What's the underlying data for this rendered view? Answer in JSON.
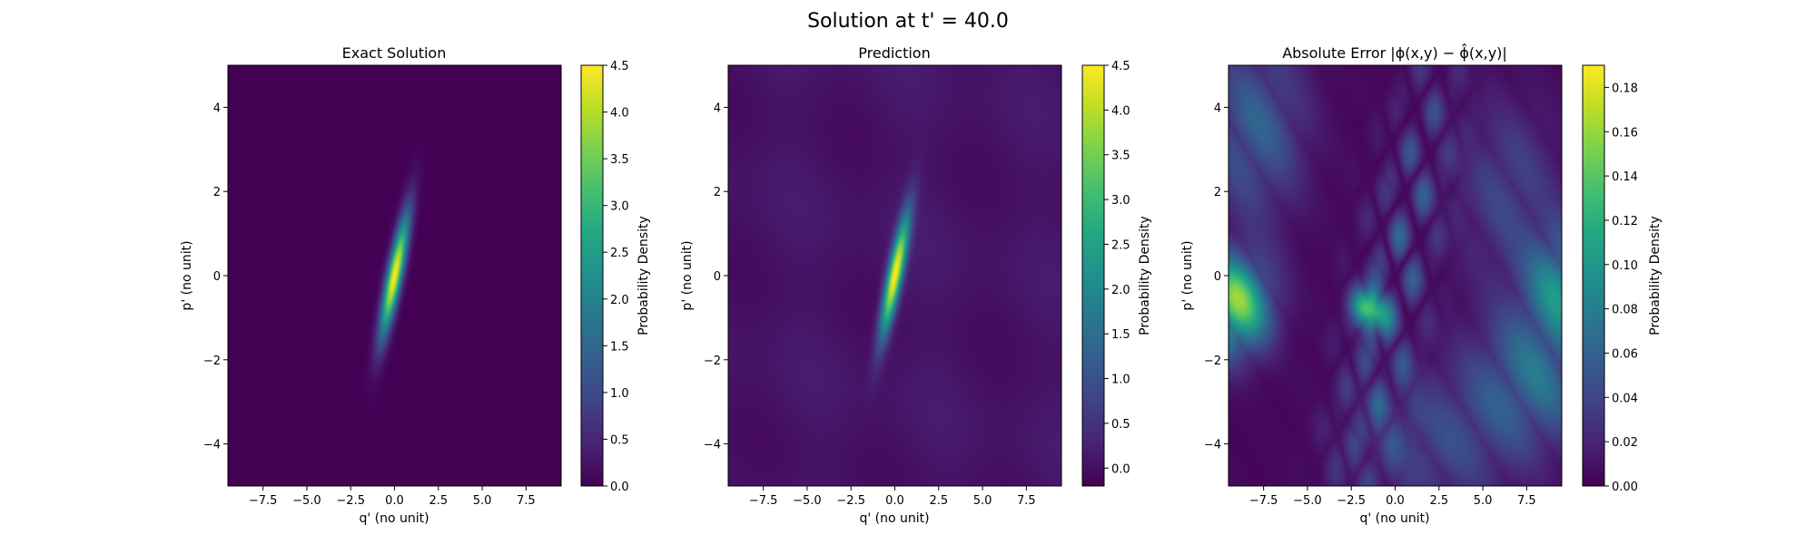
{
  "figure": {
    "suptitle": "Solution at t' = 40.0"
  },
  "colors": {
    "viridis_dark": "#440154",
    "viridis_mid": "#21918c",
    "viridis_bright": "#fde725"
  },
  "chart_data": [
    {
      "type": "heatmap",
      "title": "Exact Solution",
      "xlabel": "q' (no unit)",
      "ylabel": "p' (no unit)",
      "xlim": [
        -9.5,
        9.5
      ],
      "ylim": [
        -5,
        5
      ],
      "xticks": [
        -7.5,
        -5.0,
        -2.5,
        0.0,
        2.5,
        5.0,
        7.5
      ],
      "xtick_labels": [
        "−7.5",
        "−5.0",
        "−2.5",
        "0.0",
        "2.5",
        "5.0",
        "7.5"
      ],
      "yticks": [
        -4,
        -2,
        0,
        2,
        4
      ],
      "ytick_labels": [
        "−4",
        "−2",
        "0",
        "2",
        "4"
      ],
      "colormap": "viridis",
      "colorbar": {
        "label": "Probability Density",
        "vmin": 0.0,
        "vmax": 4.5,
        "ticks": [
          0.0,
          0.5,
          1.0,
          1.5,
          2.0,
          2.5,
          3.0,
          3.5,
          4.0,
          4.5
        ],
        "tick_labels": [
          "0.0",
          "0.5",
          "1.0",
          "1.5",
          "2.0",
          "2.5",
          "3.0",
          "3.5",
          "4.0",
          "4.5"
        ]
      },
      "field": {
        "kind": "gaussian",
        "peak": 4.5,
        "center": [
          0.0,
          0.0
        ],
        "sigma_major": 1.1,
        "sigma_minor": 0.27,
        "angle_deg": 63
      }
    },
    {
      "type": "heatmap",
      "title": "Prediction",
      "xlabel": "q' (no unit)",
      "ylabel": "p' (no unit)",
      "xlim": [
        -9.5,
        9.5
      ],
      "ylim": [
        -5,
        5
      ],
      "xticks": [
        -7.5,
        -5.0,
        -2.5,
        0.0,
        2.5,
        5.0,
        7.5
      ],
      "xtick_labels": [
        "−7.5",
        "−5.0",
        "−2.5",
        "0.0",
        "2.5",
        "5.0",
        "7.5"
      ],
      "yticks": [
        -4,
        -2,
        0,
        2,
        4
      ],
      "ytick_labels": [
        "−4",
        "−2",
        "0",
        "2",
        "4"
      ],
      "colormap": "viridis",
      "colorbar": {
        "label": "Probability Density",
        "vmin": -0.2,
        "vmax": 4.5,
        "ticks": [
          0.0,
          0.5,
          1.0,
          1.5,
          2.0,
          2.5,
          3.0,
          3.5,
          4.0,
          4.5
        ],
        "tick_labels": [
          "0.0",
          "0.5",
          "1.0",
          "1.5",
          "2.0",
          "2.5",
          "3.0",
          "3.5",
          "4.0",
          "4.5"
        ]
      },
      "field": {
        "kind": "gaussian",
        "peak": 4.5,
        "center": [
          0.0,
          0.0
        ],
        "sigma_major": 1.1,
        "sigma_minor": 0.27,
        "angle_deg": 63,
        "background": 0.05,
        "ripple": 0.12
      }
    },
    {
      "type": "heatmap",
      "title": "Absolute Error |ϕ(x,y) − ϕ̂(x,y)|",
      "xlabel": "q' (no unit)",
      "ylabel": "p' (no unit)",
      "xlim": [
        -9.5,
        9.5
      ],
      "ylim": [
        -5,
        5
      ],
      "xticks": [
        -7.5,
        -5.0,
        -2.5,
        0.0,
        2.5,
        5.0,
        7.5
      ],
      "xtick_labels": [
        "−7.5",
        "−5.0",
        "−2.5",
        "0.0",
        "2.5",
        "5.0",
        "7.5"
      ],
      "yticks": [
        -4,
        -2,
        0,
        2,
        4
      ],
      "ytick_labels": [
        "−4",
        "−2",
        "0",
        "2",
        "4"
      ],
      "colormap": "viridis",
      "colorbar": {
        "label": "Probability Density",
        "vmin": 0.0,
        "vmax": 0.19,
        "ticks": [
          0.0,
          0.02,
          0.04,
          0.06,
          0.08,
          0.1,
          0.12,
          0.14,
          0.16,
          0.18
        ],
        "tick_labels": [
          "0.00",
          "0.02",
          "0.04",
          "0.06",
          "0.08",
          "0.10",
          "0.12",
          "0.14",
          "0.16",
          "0.18"
        ]
      },
      "field": {
        "kind": "error",
        "blobs": [
          {
            "center": [
              -9.3,
              -0.7
            ],
            "sigma": [
              1.5,
              0.8
            ],
            "amplitude": 0.17
          },
          {
            "center": [
              -1.5,
              -0.8
            ],
            "sigma": [
              0.7,
              0.35
            ],
            "amplitude": 0.13
          },
          {
            "center": [
              9.5,
              -0.2
            ],
            "sigma": [
              1.4,
              0.9
            ],
            "amplitude": 0.09
          },
          {
            "center": [
              8.0,
              -2.4
            ],
            "sigma": [
              2.5,
              1.2
            ],
            "amplitude": 0.07
          },
          {
            "center": [
              -8.0,
              3.5
            ],
            "sigma": [
              2.0,
              1.5
            ],
            "amplitude": 0.06
          },
          {
            "center": [
              6.5,
              2.0
            ],
            "sigma": [
              2.0,
              1.5
            ],
            "amplitude": 0.04
          },
          {
            "center": [
              2.5,
              -4.0
            ],
            "sigma": [
              3.0,
              1.2
            ],
            "amplitude": 0.04
          }
        ]
      }
    }
  ]
}
